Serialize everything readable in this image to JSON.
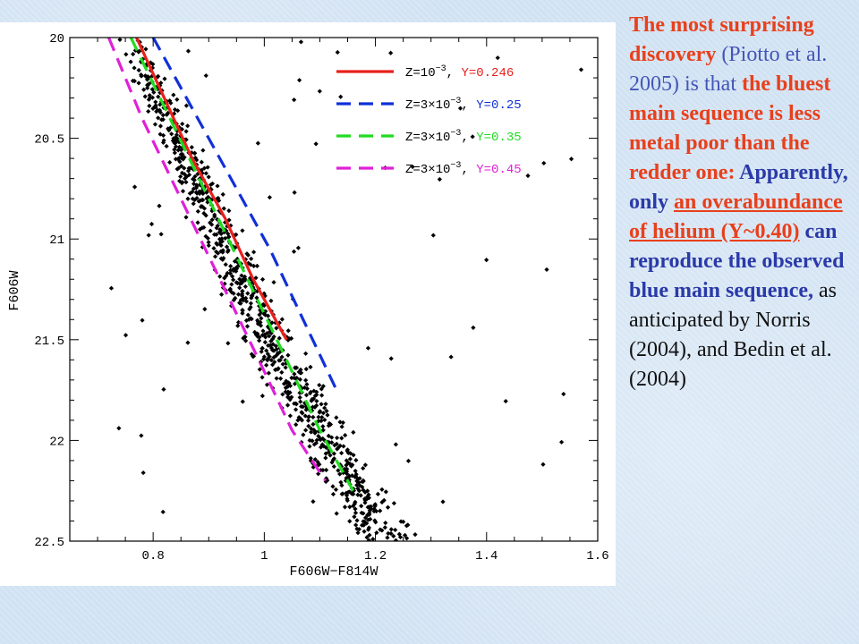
{
  "chart_data": {
    "type": "scatter",
    "xlabel": "F606W−F814W",
    "ylabel": "F606W",
    "xlim": [
      0.65,
      1.6
    ],
    "ylim": [
      22.5,
      20.0
    ],
    "x_ticks": [
      0.8,
      1.0,
      1.2,
      1.4,
      1.6
    ],
    "x_tick_labels": [
      "0.8",
      "1",
      "1.2",
      "1.4",
      "1.6"
    ],
    "y_ticks": [
      20.0,
      20.5,
      21.0,
      21.5,
      22.0,
      22.5
    ],
    "y_tick_labels": [
      "20",
      "20.5",
      "21",
      "21.5",
      "22",
      "22.5"
    ],
    "legend_position": "top-right",
    "series": [
      {
        "name": "Z=10⁻³, Y=0.246",
        "legend_z": "Z=10",
        "legend_z_exp": "−3",
        "legend_y": "Y=0.246",
        "color": "#e8201c",
        "dash": "solid",
        "x": [
          0.77,
          0.82,
          0.87,
          0.93,
          0.98,
          1.04
        ],
        "y": [
          20.0,
          20.3,
          20.6,
          20.9,
          21.2,
          21.5
        ]
      },
      {
        "name": "Z=3×10⁻³, Y=0.25",
        "legend_z": "Z=3×10",
        "legend_z_exp": "−3",
        "legend_y": "Y=0.25",
        "color": "#1030d8",
        "dash": "dashed",
        "x": [
          0.8,
          0.87,
          0.94,
          1.01,
          1.07,
          1.13
        ],
        "y": [
          20.0,
          20.35,
          20.7,
          21.05,
          21.4,
          21.75
        ]
      },
      {
        "name": "Z=3×10⁻³, Y=0.35",
        "legend_z": "Z=3×10",
        "legend_z_exp": "−3",
        "legend_y": "Y=0.35",
        "color": "#20dc20",
        "dash": "dashed",
        "x": [
          0.76,
          0.83,
          0.9,
          0.97,
          1.04,
          1.1,
          1.16
        ],
        "y": [
          20.0,
          20.4,
          20.8,
          21.2,
          21.6,
          21.95,
          22.25
        ]
      },
      {
        "name": "Z=3×10⁻³, Y=0.45",
        "legend_z": "Z=3×10",
        "legend_z_exp": "−3",
        "legend_y": "Y=0.45",
        "color": "#e020d8",
        "dash": "dashed",
        "x": [
          0.72,
          0.78,
          0.85,
          0.92,
          0.99,
          1.05,
          1.11
        ],
        "y": [
          20.0,
          20.4,
          20.8,
          21.2,
          21.6,
          21.95,
          22.2
        ]
      }
    ],
    "scatter_points": {
      "count": 950,
      "color": "#000000"
    }
  },
  "caption": {
    "p1": "The most surprising discovery",
    "p2": " (Piotto et al. 2005) is that ",
    "p3": "the bluest main sequence is less metal poor than the redder one:",
    "p4": " Apparently, only ",
    "p5": "an overabundance of helium (Y~0.40)",
    "p6": " can reproduce the observed blue main sequence,",
    "p7": " as anticipated by Norris (2004), and Bedin et al. (2004)"
  }
}
